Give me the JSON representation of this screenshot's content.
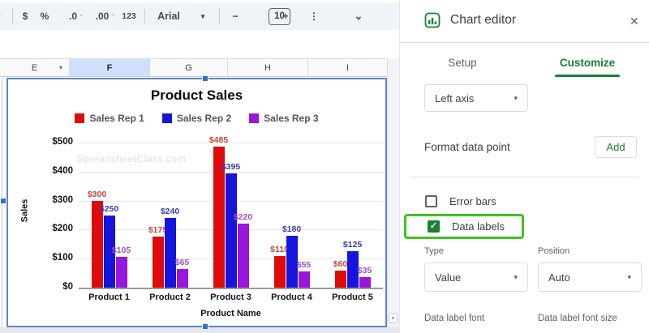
{
  "toolbar": {
    "menu_caret": "▾",
    "currency_label": "$",
    "percent_label": "%",
    "decrease_decimal_label": ".0",
    "decrease_decimal_arrow": "←",
    "increase_decimal_label": ".00",
    "increase_decimal_arrow": "→",
    "number_format_label": "123",
    "font_name": "Arial",
    "font_caret": "▾",
    "decrease_font_label": "−",
    "font_size": "10",
    "increase_font_label": "+",
    "more_label": "⋮",
    "collapse_label": "⌄"
  },
  "sheet": {
    "columns": [
      "E",
      "F",
      "G",
      "H",
      "I"
    ],
    "selected_column": "F",
    "column_caret": "▾"
  },
  "chart_data": {
    "type": "bar",
    "title": "Product Sales",
    "xlabel": "Product Name",
    "ylabel": "Sales",
    "categories": [
      "Product 1",
      "Product 2",
      "Product 3",
      "Product 4",
      "Product 5"
    ],
    "series": [
      {
        "name": "Sales Rep 1",
        "color": "#df0a0a",
        "label_color": "#c9473a",
        "values": [
          300,
          175,
          485,
          110,
          60
        ]
      },
      {
        "name": "Sales Rep 2",
        "color": "#1515dd",
        "label_color": "#3c3cae",
        "values": [
          250,
          240,
          395,
          180,
          125
        ]
      },
      {
        "name": "Sales Rep 3",
        "color": "#9816dd",
        "label_color": "#a24ec2",
        "values": [
          105,
          65,
          220,
          55,
          35
        ]
      }
    ],
    "ylim": [
      0,
      500
    ],
    "ytick_step": 100,
    "yticks": [
      "$0",
      "$100",
      "$200",
      "$300",
      "$400",
      "$500"
    ],
    "value_prefix": "$",
    "grid": true,
    "legend_position": "top",
    "data_labels": true,
    "watermark": "SpreadsheetClass.com"
  },
  "panel": {
    "title": "Chart editor",
    "tabs": [
      {
        "label": "Setup",
        "active": false
      },
      {
        "label": "Customize",
        "active": true
      }
    ],
    "axis_selector": {
      "value": "Left axis"
    },
    "format_data_point": {
      "label": "Format data point",
      "action_label": "Add"
    },
    "error_bars": {
      "label": "Error bars",
      "checked": false
    },
    "data_labels": {
      "label": "Data labels",
      "checked": true,
      "highlighted": true,
      "highlight_color": "#3ec41f"
    },
    "type_field": {
      "label": "Type",
      "value": "Value"
    },
    "position_field": {
      "label": "Position",
      "value": "Auto"
    },
    "data_label_font_label": "Data label font",
    "data_label_font_size_label": "Data label font size"
  },
  "icons": {
    "close": "✕",
    "caret_down": "▾",
    "check": "✓"
  }
}
